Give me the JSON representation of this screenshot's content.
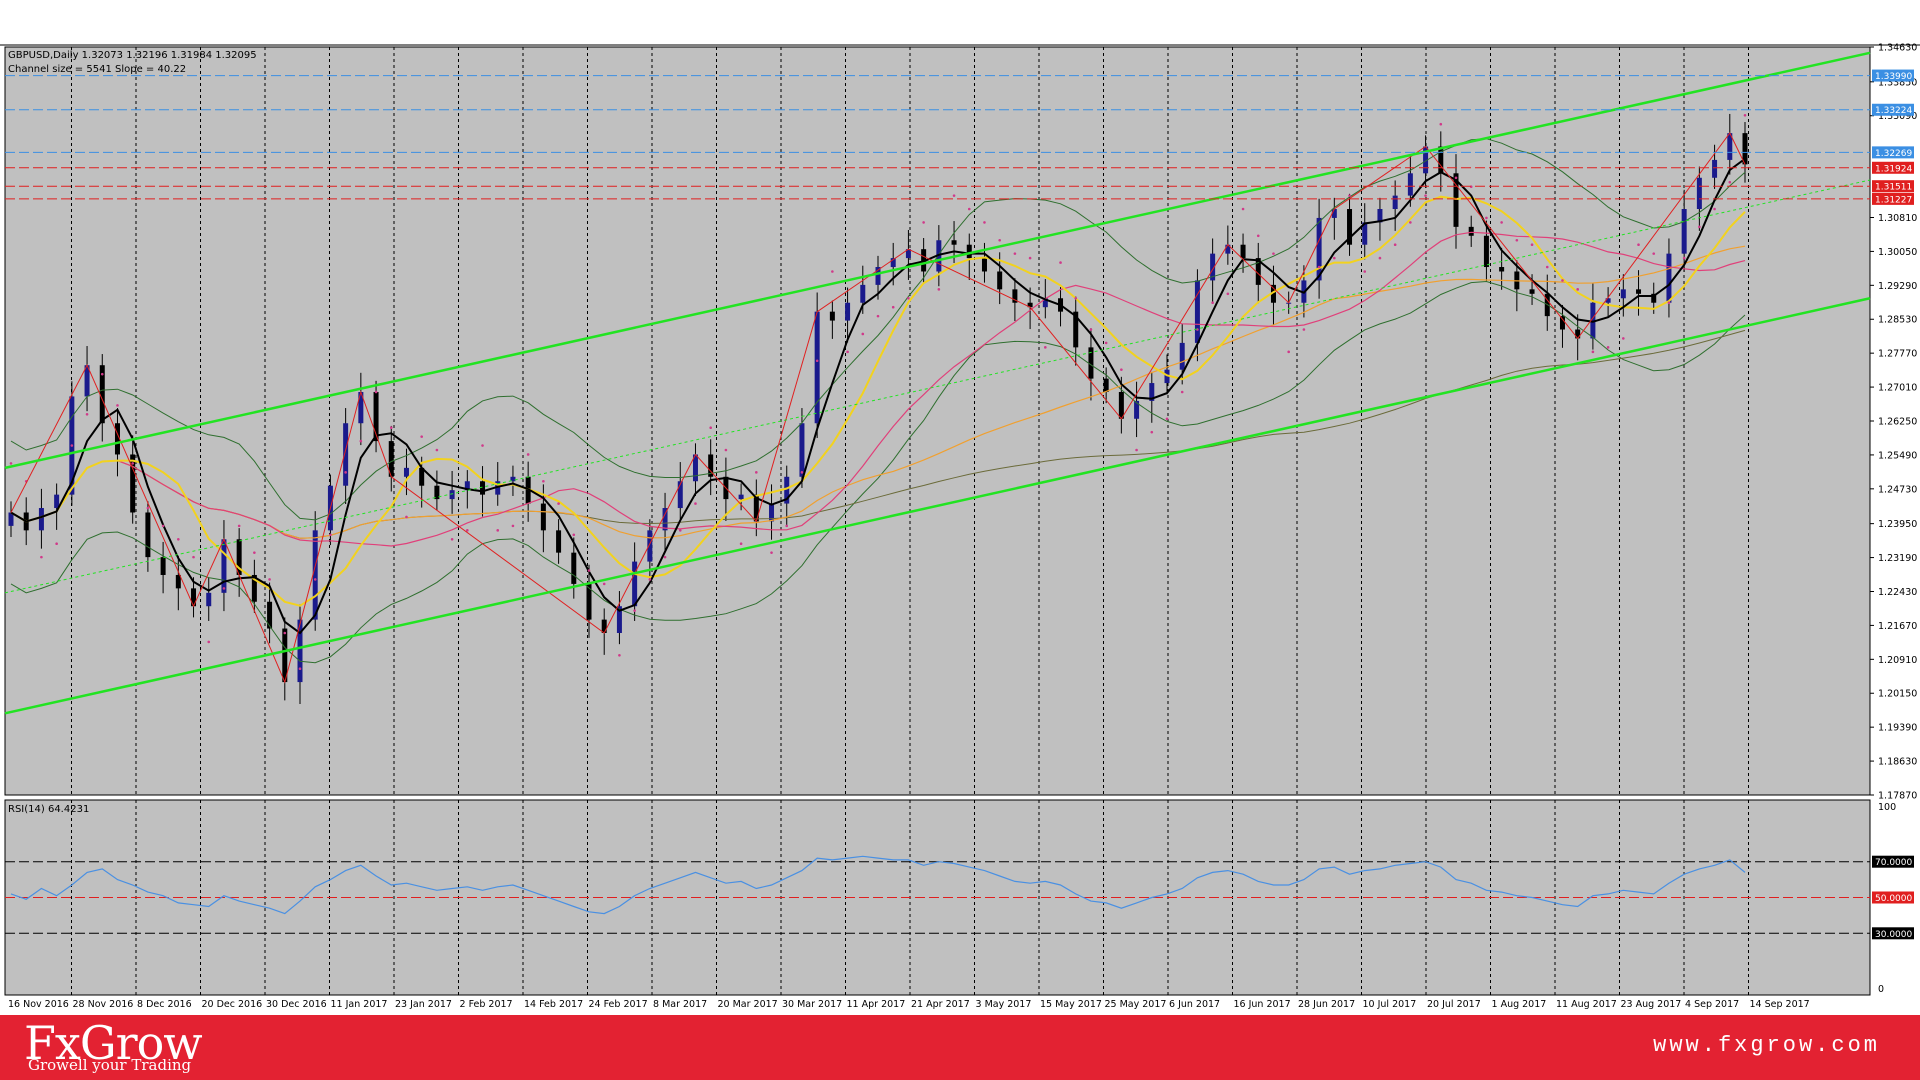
{
  "header": {
    "symbol_line": "GBPUSD,Daily  1.32073 1.32196 1.31984 1.32095",
    "channel_line": "Channel size = 5541 Slope = 40.22"
  },
  "rsi_header": "RSI(14) 64.4231",
  "footer": {
    "brand": "FxGrow",
    "tagline": "Growell your Trading",
    "url": "www.fxgrow.com"
  },
  "colors": {
    "plot_bg": "#c0c0c0",
    "bull_candle": "#1a1a8c",
    "bear_candle": "#000000",
    "channel": "#22e322",
    "bollinger": "#2f6f2f",
    "ma_fast": "#000000",
    "ma_yellow": "#f2d21e",
    "ma_pink": "#e0407a",
    "ma_orange": "#f0a030",
    "ma_slow": "#6b6b3a",
    "sar": "#d03a8a",
    "rsi_line": "#4a90e2",
    "level_blue": "#3b8fe3",
    "level_red": "#e01f1f",
    "footer_bg": "#e32232"
  },
  "chart_data": {
    "type": "candlestick",
    "instrument": "GBPUSD",
    "timeframe": "Daily",
    "ohlc_last": {
      "open": 1.32073,
      "high": 1.32196,
      "low": 1.31984,
      "close": 1.32095
    },
    "channel_size": 5541,
    "slope": 40.22,
    "ylim": [
      1.1787,
      1.3463
    ],
    "y_ticks": [
      "1.34630",
      "1.33850",
      "1.33090",
      "1.30810",
      "1.30050",
      "1.29290",
      "1.28530",
      "1.27770",
      "1.27010",
      "1.26250",
      "1.25490",
      "1.24730",
      "1.23950",
      "1.23190",
      "1.22430",
      "1.21670",
      "1.20910",
      "1.20150",
      "1.19390",
      "1.18630",
      "1.17870"
    ],
    "x_ticks": [
      "16 Nov 2016",
      "28 Nov 2016",
      "8 Dec 2016",
      "20 Dec 2016",
      "30 Dec 2016",
      "11 Jan 2017",
      "23 Jan 2017",
      "2 Feb 2017",
      "14 Feb 2017",
      "24 Feb 2017",
      "8 Mar 2017",
      "20 Mar 2017",
      "30 Mar 2017",
      "11 Apr 2017",
      "21 Apr 2017",
      "3 May 2017",
      "15 May 2017",
      "25 May 2017",
      "6 Jun 2017",
      "16 Jun 2017",
      "28 Jun 2017",
      "10 Jul 2017",
      "20 Jul 2017",
      "1 Aug 2017",
      "11 Aug 2017",
      "23 Aug 2017",
      "4 Sep 2017",
      "14 Sep 2017"
    ],
    "price_levels": [
      {
        "label": "1.33990",
        "value": 1.3399,
        "color": "blue"
      },
      {
        "label": "1.33224",
        "value": 1.33224,
        "color": "blue"
      },
      {
        "label": "1.32269",
        "value": 1.32269,
        "color": "blue"
      },
      {
        "label": "1.31924",
        "value": 1.31924,
        "color": "red"
      },
      {
        "label": "1.31511",
        "value": 1.31511,
        "color": "red"
      },
      {
        "label": "1.31227",
        "value": 1.31227,
        "color": "red"
      }
    ],
    "close_path": [
      1.242,
      1.238,
      1.243,
      1.246,
      1.268,
      1.275,
      1.262,
      1.255,
      1.242,
      1.232,
      1.228,
      1.225,
      1.221,
      1.224,
      1.236,
      1.228,
      1.222,
      1.216,
      1.204,
      1.218,
      1.238,
      1.248,
      1.262,
      1.269,
      1.258,
      1.25,
      1.252,
      1.248,
      1.245,
      1.247,
      1.249,
      1.246,
      1.249,
      1.25,
      1.244,
      1.238,
      1.233,
      1.226,
      1.218,
      1.215,
      1.221,
      1.231,
      1.238,
      1.243,
      1.249,
      1.255,
      1.25,
      1.245,
      1.246,
      1.24,
      1.244,
      1.25,
      1.262,
      1.287,
      1.285,
      1.289,
      1.293,
      1.297,
      1.299,
      1.301,
      1.296,
      1.303,
      1.302,
      1.299,
      1.296,
      1.292,
      1.289,
      1.288,
      1.29,
      1.287,
      1.279,
      1.272,
      1.269,
      1.263,
      1.267,
      1.271,
      1.274,
      1.28,
      1.294,
      1.3,
      1.302,
      1.299,
      1.293,
      1.289,
      1.289,
      1.294,
      1.308,
      1.31,
      1.302,
      1.307,
      1.31,
      1.313,
      1.318,
      1.324,
      1.318,
      1.306,
      1.304,
      1.297,
      1.296,
      1.292,
      1.291,
      1.286,
      1.283,
      1.281,
      1.289,
      1.29,
      1.292,
      1.291,
      1.289,
      1.3,
      1.31,
      1.317,
      1.321,
      1.327,
      1.32
    ],
    "rsi": {
      "period": 14,
      "value": 64.4231,
      "ylim": [
        0,
        100
      ],
      "levels": [
        {
          "label": "70.0000",
          "value": 70
        },
        {
          "label": "50.0000",
          "value": 50
        },
        {
          "label": "30.0000",
          "value": 30
        }
      ],
      "axis_top": "100",
      "axis_bottom": "0",
      "series": [
        52,
        49,
        55,
        51,
        57,
        64,
        66,
        60,
        57,
        53,
        51,
        47,
        46,
        45,
        51,
        48,
        46,
        44,
        41,
        48,
        56,
        60,
        65,
        68,
        62,
        57,
        58,
        56,
        54,
        55,
        56,
        54,
        56,
        57,
        54,
        51,
        48,
        45,
        42,
        41,
        45,
        51,
        55,
        58,
        61,
        64,
        61,
        58,
        59,
        55,
        57,
        61,
        65,
        72,
        71,
        72,
        73,
        72,
        71,
        71,
        68,
        70,
        69,
        67,
        65,
        62,
        59,
        58,
        59,
        57,
        52,
        48,
        47,
        44,
        47,
        50,
        52,
        55,
        61,
        64,
        65,
        63,
        59,
        57,
        57,
        60,
        66,
        67,
        63,
        65,
        66,
        68,
        69,
        70,
        67,
        60,
        58,
        54,
        53,
        51,
        50,
        48,
        46,
        45,
        51,
        52,
        54,
        53,
        52,
        58,
        63,
        66,
        68,
        71,
        64
      ]
    }
  }
}
